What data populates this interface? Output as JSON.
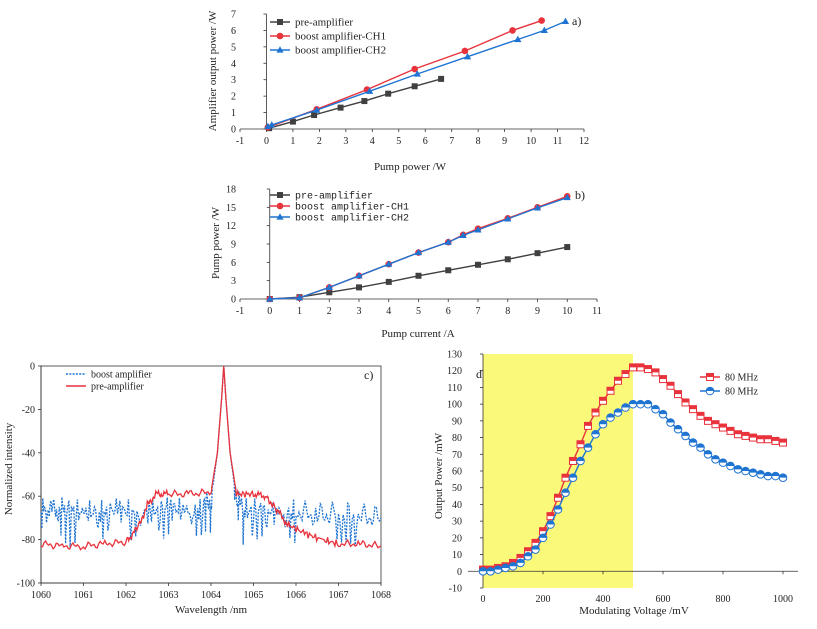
{
  "chart_data": [
    {
      "id": "a",
      "type": "line",
      "panel_label": "a)",
      "xlabel": "Pump power /W",
      "ylabel": "Amplifier output power /W",
      "xlim": [
        -1,
        12
      ],
      "ylim": [
        0,
        7
      ],
      "xticks": [
        -1,
        0,
        1,
        2,
        3,
        4,
        5,
        6,
        7,
        8,
        9,
        10,
        11,
        12
      ],
      "yticks": [
        0,
        1,
        2,
        3,
        4,
        5,
        6,
        7
      ],
      "legend_position": "top-left",
      "series": [
        {
          "name": "pre-amplifier",
          "color": "#404040",
          "marker": "square",
          "x": [
            0.1,
            1.0,
            1.8,
            2.8,
            3.7,
            4.6,
            5.6,
            6.6
          ],
          "y": [
            0.05,
            0.45,
            0.85,
            1.3,
            1.7,
            2.15,
            2.6,
            3.05
          ]
        },
        {
          "name": "boost amplifier-CH1",
          "color": "#e8323c",
          "marker": "circle",
          "x": [
            0.05,
            1.9,
            3.8,
            5.6,
            7.5,
            9.3,
            10.4
          ],
          "y": [
            0.1,
            1.2,
            2.4,
            3.65,
            4.75,
            6.0,
            6.6
          ]
        },
        {
          "name": "boost amplifier-CH2",
          "color": "#1f74d1",
          "marker": "triangle",
          "x": [
            0.05,
            0.2,
            1.9,
            3.9,
            5.7,
            7.6,
            9.5,
            10.5,
            11.3
          ],
          "y": [
            0.15,
            0.25,
            1.15,
            2.3,
            3.35,
            4.4,
            5.45,
            6.0,
            6.55
          ]
        }
      ]
    },
    {
      "id": "b",
      "type": "line",
      "panel_label": "b)",
      "xlabel": "Pump current /A",
      "ylabel": "Pump power /W",
      "xlim": [
        -1,
        11
      ],
      "ylim": [
        0,
        18
      ],
      "xticks": [
        -1,
        0,
        1,
        2,
        3,
        4,
        5,
        6,
        7,
        8,
        9,
        10,
        11
      ],
      "yticks": [
        0,
        3,
        6,
        9,
        12,
        15,
        18
      ],
      "legend_position": "top-left",
      "series": [
        {
          "name": "pre-amplifier",
          "color": "#404040",
          "marker": "square",
          "x": [
            0,
            1,
            2,
            3,
            4,
            5,
            6,
            7,
            8,
            9,
            10
          ],
          "y": [
            0.0,
            0.3,
            1.1,
            1.9,
            2.8,
            3.8,
            4.7,
            5.6,
            6.5,
            7.5,
            8.5
          ]
        },
        {
          "name": "boost amplifier-CH1",
          "color": "#e8323c",
          "marker": "circle",
          "x": [
            0,
            1,
            2,
            3,
            4,
            5,
            6,
            6.5,
            7,
            8,
            9,
            10
          ],
          "y": [
            0.0,
            0.2,
            1.9,
            3.8,
            5.7,
            7.6,
            9.3,
            10.5,
            11.5,
            13.2,
            15.0,
            16.8
          ]
        },
        {
          "name": "boost amplifier-CH2",
          "color": "#1f74d1",
          "marker": "triangle",
          "x": [
            0,
            1,
            2,
            3,
            4,
            5,
            6,
            6.5,
            7,
            8,
            9,
            10
          ],
          "y": [
            0.0,
            0.2,
            1.9,
            3.8,
            5.7,
            7.6,
            9.3,
            10.4,
            11.3,
            13.1,
            14.9,
            16.6
          ]
        }
      ]
    },
    {
      "id": "c",
      "type": "line",
      "panel_label": "c)",
      "xlabel": "Wavelength /nm",
      "ylabel": "Normalized intensity",
      "xlim": [
        1060,
        1068
      ],
      "ylim": [
        -100,
        0
      ],
      "xticks": [
        1060,
        1061,
        1062,
        1063,
        1064,
        1065,
        1066,
        1067,
        1068
      ],
      "yticks": [
        -100,
        -80,
        -60,
        -40,
        -20,
        0
      ],
      "legend_position": "top-left",
      "series": [
        {
          "name": "boost amplifier",
          "color": "#1f74d1",
          "style": "dotted",
          "x": [
            1060.0,
            1060.3,
            1060.6,
            1061.0,
            1061.4,
            1061.8,
            1062.2,
            1062.6,
            1063.0,
            1063.4,
            1063.8,
            1064.0,
            1064.15,
            1064.25,
            1064.3,
            1064.35,
            1064.45,
            1064.6,
            1064.8,
            1065.2,
            1065.6,
            1066.0,
            1066.5,
            1067.0,
            1067.5,
            1068.0
          ],
          "y": [
            -66,
            -67,
            -66,
            -68,
            -67,
            -66,
            -68,
            -67,
            -65,
            -67,
            -66,
            -62,
            -40,
            -15,
            0,
            -15,
            -40,
            -62,
            -67,
            -66,
            -68,
            -67,
            -69,
            -68,
            -69,
            -70
          ]
        },
        {
          "name": "pre-amplifier",
          "color": "#e8323c",
          "style": "solid",
          "x": [
            1060.0,
            1060.5,
            1061.0,
            1061.5,
            1062.0,
            1062.3,
            1062.5,
            1062.7,
            1063.0,
            1063.5,
            1064.0,
            1064.15,
            1064.25,
            1064.3,
            1064.35,
            1064.45,
            1064.6,
            1065.0,
            1065.3,
            1065.5,
            1065.8,
            1066.2,
            1066.6,
            1067.0,
            1067.5,
            1068.0
          ],
          "y": [
            -82,
            -83,
            -83,
            -82,
            -81,
            -74,
            -64,
            -59,
            -59,
            -59,
            -58,
            -40,
            -15,
            0,
            -15,
            -40,
            -59,
            -59,
            -60,
            -65,
            -73,
            -77,
            -80,
            -82,
            -82,
            -83
          ]
        }
      ]
    },
    {
      "id": "d",
      "type": "line",
      "panel_label": "d)",
      "xlabel": "Modulating Voltage /mV",
      "ylabel": "Output Power /mW",
      "xlim": [
        -50,
        1050
      ],
      "ylim": [
        -10,
        130
      ],
      "xticks": [
        0,
        200,
        400,
        600,
        800,
        1000
      ],
      "yticks": [
        -10,
        0,
        10,
        20,
        30,
        40,
        50,
        60,
        70,
        80,
        90,
        100,
        110,
        120,
        130
      ],
      "highlight_band": {
        "x0": 0,
        "x1": 500,
        "color": "#fbf97a"
      },
      "legend_position": "top-right",
      "series": [
        {
          "name": "80 MHz",
          "color": "#e8323c",
          "marker": "square",
          "x": [
            0,
            25,
            50,
            75,
            100,
            125,
            150,
            175,
            200,
            225,
            250,
            275,
            300,
            325,
            350,
            375,
            400,
            425,
            450,
            475,
            500,
            525,
            550,
            575,
            600,
            625,
            650,
            675,
            700,
            725,
            750,
            775,
            800,
            825,
            850,
            875,
            900,
            925,
            950,
            975,
            1000
          ],
          "y": [
            1,
            1,
            2,
            3,
            5,
            8,
            12,
            17,
            24,
            33,
            44,
            56,
            66,
            76,
            87,
            95,
            102,
            108,
            114,
            118,
            122,
            122,
            121,
            119,
            115,
            111,
            106,
            101,
            97,
            93,
            90,
            88,
            86,
            84,
            82,
            81,
            80,
            79,
            79,
            78,
            77
          ]
        },
        {
          "name": "80 MHz",
          "color": "#1f74d1",
          "marker": "circle",
          "x": [
            0,
            25,
            50,
            75,
            100,
            125,
            150,
            175,
            200,
            225,
            250,
            275,
            300,
            325,
            350,
            375,
            400,
            425,
            450,
            475,
            500,
            525,
            550,
            575,
            600,
            625,
            650,
            675,
            700,
            725,
            750,
            775,
            800,
            825,
            850,
            875,
            900,
            925,
            950,
            975,
            1000
          ],
          "y": [
            0,
            0,
            1,
            2,
            3,
            5,
            9,
            13,
            20,
            28,
            37,
            47,
            56,
            66,
            74,
            82,
            88,
            92,
            95,
            98,
            100,
            100,
            100,
            97,
            94,
            89,
            85,
            81,
            77,
            74,
            70,
            67,
            65,
            63,
            61,
            60,
            59,
            58,
            57,
            57,
            56
          ]
        }
      ]
    }
  ]
}
